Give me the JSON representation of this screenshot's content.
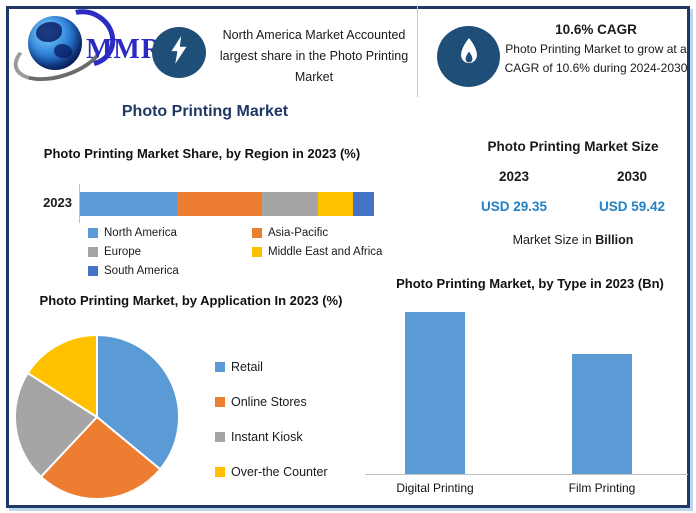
{
  "header": {
    "logo_text": "MMR",
    "left_callout": {
      "icon": "lightning-bolt-icon",
      "text": "North America Market Accounted largest share in the Photo Printing Market"
    },
    "right_callout": {
      "icon": "flame-icon",
      "heading": "10.6% CAGR",
      "body": "Photo Printing Market to grow at a CAGR of 10.6% during 2024-2030"
    }
  },
  "page_title": "Photo Printing Market",
  "market_size": {
    "title": "Photo Printing Market Size",
    "columns": [
      {
        "year": "2023",
        "value": "USD 29.35"
      },
      {
        "year": "2030",
        "value": "USD 59.42"
      }
    ],
    "note_prefix": "Market Size in ",
    "note_bold": "Billion"
  },
  "chart_data": [
    {
      "id": "region_share",
      "type": "bar",
      "variant": "horizontal-stacked",
      "title": "Photo Printing Market Share, by Region in 2023 (%)",
      "category": "2023",
      "unit": "%",
      "legend_position": "bottom",
      "series": [
        {
          "name": "North America",
          "value": 33,
          "color": "#5B9BD5"
        },
        {
          "name": "Asia-Pacific",
          "value": 29,
          "color": "#ED7D31"
        },
        {
          "name": "Europe",
          "value": 19,
          "color": "#A5A5A5"
        },
        {
          "name": "Middle East and Africa",
          "value": 12,
          "color": "#FFC000"
        },
        {
          "name": "South America",
          "value": 7,
          "color": "#4472C4"
        }
      ]
    },
    {
      "id": "application_share",
      "type": "pie",
      "title": "Photo Printing Market, by Application In 2023 (%)",
      "unit": "%",
      "start_angle_deg": 0,
      "direction": "clockwise",
      "legend_position": "right",
      "slices": [
        {
          "name": "Retail",
          "value": 36,
          "color": "#5B9BD5"
        },
        {
          "name": "Online Stores",
          "value": 26,
          "color": "#ED7D31"
        },
        {
          "name": "Instant Kiosk",
          "value": 22,
          "color": "#A5A5A5"
        },
        {
          "name": "Over-the Counter",
          "value": 16,
          "color": "#FFC000"
        }
      ]
    },
    {
      "id": "type_2023",
      "type": "bar",
      "variant": "vertical",
      "title": "Photo Printing Market, by Type in 2023 (Bn)",
      "categories": [
        "Digital Printing",
        "Film Printing"
      ],
      "values": [
        1.0,
        0.74
      ],
      "value_note": "axis unlabeled; values are relative bar heights",
      "bar_color": "#5B9BD5",
      "grid": false
    }
  ],
  "colors": {
    "frame_navy": "#1F3864",
    "frame_shadow_blue": "#BDD7EE",
    "title_navy": "#1F3864",
    "value_blue": "#2380C4",
    "icon_ellipse_blue": "#1F4E79",
    "logo_blue": "#2B2BC4"
  }
}
